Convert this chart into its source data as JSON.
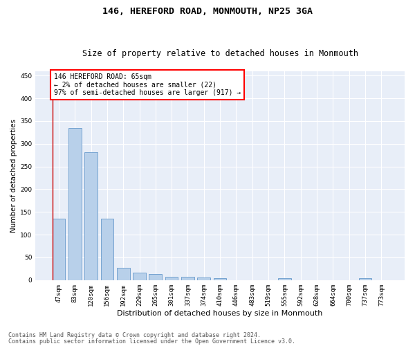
{
  "title": "146, HEREFORD ROAD, MONMOUTH, NP25 3GA",
  "subtitle": "Size of property relative to detached houses in Monmouth",
  "xlabel": "Distribution of detached houses by size in Monmouth",
  "ylabel": "Number of detached properties",
  "categories": [
    "47sqm",
    "83sqm",
    "120sqm",
    "156sqm",
    "192sqm",
    "229sqm",
    "265sqm",
    "301sqm",
    "337sqm",
    "374sqm",
    "410sqm",
    "446sqm",
    "483sqm",
    "519sqm",
    "555sqm",
    "592sqm",
    "628sqm",
    "664sqm",
    "700sqm",
    "737sqm",
    "773sqm"
  ],
  "values": [
    135,
    335,
    282,
    135,
    27,
    16,
    13,
    8,
    7,
    6,
    4,
    0,
    0,
    0,
    5,
    0,
    0,
    0,
    0,
    5,
    0
  ],
  "bar_color": "#b8d0ea",
  "bar_edge_color": "#6699cc",
  "background_color": "#e8eef8",
  "grid_color": "#ffffff",
  "ylim": [
    0,
    460
  ],
  "yticks": [
    0,
    50,
    100,
    150,
    200,
    250,
    300,
    350,
    400,
    450
  ],
  "annotation_line1": "146 HEREFORD ROAD: 65sqm",
  "annotation_line2": "← 2% of detached houses are smaller (22)",
  "annotation_line3": "97% of semi-detached houses are larger (917) →",
  "vline_color": "#cc0000",
  "footer_line1": "Contains HM Land Registry data © Crown copyright and database right 2024.",
  "footer_line2": "Contains public sector information licensed under the Open Government Licence v3.0.",
  "title_fontsize": 9.5,
  "subtitle_fontsize": 8.5,
  "xlabel_fontsize": 8,
  "ylabel_fontsize": 7.5,
  "tick_fontsize": 6.5,
  "annot_fontsize": 7,
  "footer_fontsize": 6
}
